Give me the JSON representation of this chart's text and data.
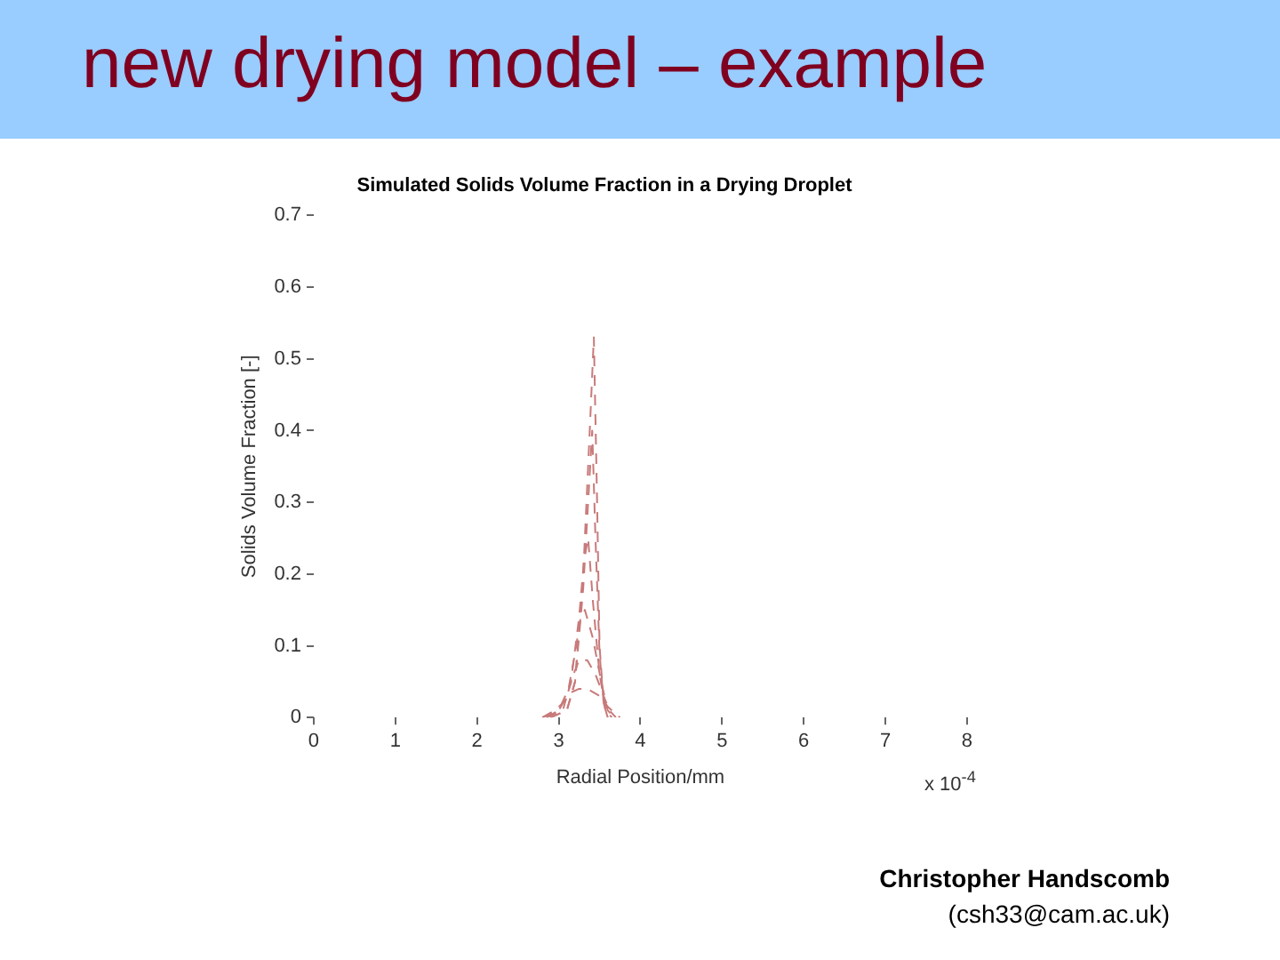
{
  "chart_data": {
    "type": "line",
    "title": "new drying model – example",
    "subtitle": "Simulated Solids Volume Fraction in a Drying Droplet",
    "xlabel": "Radial Position/mm",
    "ylabel": "Solids Volume Fraction [-]",
    "annotations": [
      "x 10$^{-4}$",
      "Christopher Handscomb",
      "(csh33@cam.ac.uk)"
    ],
    "xlim": [
      0,
      8
    ],
    "xticks": [
      0,
      1,
      2,
      3,
      4,
      5,
      6,
      7,
      8
    ],
    "ylim": [
      0,
      0.7
    ],
    "yticks": [
      0,
      0.1,
      0.2,
      0.3,
      0.4,
      0.5,
      0.6,
      0.7
    ],
    "grid": false,
    "legend": false,
    "marker": "none",
    "line_style": "dashed",
    "series": [
      {
        "color": "#c87a7a",
        "x": [
          2.9,
          3.1,
          3.2,
          3.3,
          3.38,
          3.43,
          3.47,
          3.5,
          3.55,
          3.6
        ],
        "values": [
          0,
          0.01,
          0.05,
          0.2,
          0.4,
          0.53,
          0.3,
          0.1,
          0.02,
          0
        ]
      },
      {
        "color": "#c87a7a",
        "x": [
          2.9,
          3.1,
          3.2,
          3.3,
          3.36,
          3.41,
          3.45,
          3.5,
          3.55,
          3.6
        ],
        "values": [
          0,
          0.01,
          0.05,
          0.18,
          0.3,
          0.4,
          0.25,
          0.09,
          0.02,
          0
        ]
      },
      {
        "color": "#c87a7a",
        "x": [
          2.85,
          3.05,
          3.15,
          3.25,
          3.31,
          3.36,
          3.42,
          3.5,
          3.58,
          3.65
        ],
        "values": [
          0,
          0.01,
          0.05,
          0.14,
          0.22,
          0.25,
          0.16,
          0.06,
          0.01,
          0
        ]
      },
      {
        "color": "#c87a7a",
        "x": [
          2.85,
          3.0,
          3.12,
          3.2,
          3.27,
          3.32,
          3.42,
          3.52,
          3.6,
          3.68
        ],
        "values": [
          0,
          0.01,
          0.04,
          0.09,
          0.14,
          0.15,
          0.11,
          0.05,
          0.01,
          0
        ]
      },
      {
        "color": "#c87a7a",
        "x": [
          2.8,
          3.0,
          3.1,
          3.18,
          3.25,
          3.35,
          3.45,
          3.55,
          3.62,
          3.7
        ],
        "values": [
          0,
          0.01,
          0.03,
          0.06,
          0.08,
          0.08,
          0.06,
          0.03,
          0.01,
          0
        ]
      },
      {
        "color": "#c87a7a",
        "x": [
          2.8,
          2.95,
          3.05,
          3.15,
          3.25,
          3.35,
          3.5,
          3.6,
          3.7,
          3.75
        ],
        "values": [
          0,
          0.01,
          0.02,
          0.035,
          0.04,
          0.04,
          0.03,
          0.015,
          0.005,
          0
        ]
      }
    ]
  }
}
